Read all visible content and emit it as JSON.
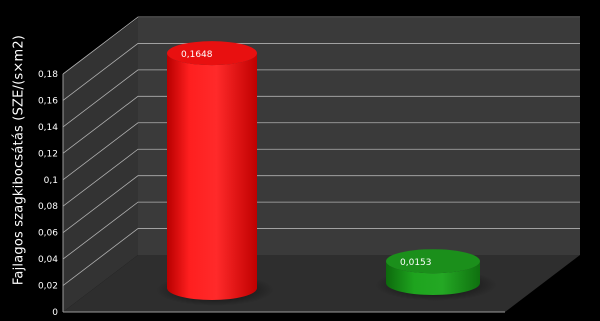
{
  "chart_data": {
    "type": "bar",
    "title": "",
    "xlabel": "",
    "ylabel": "Fajlagos szagkibocsátás (SZE/(s×m2)",
    "ylim": [
      0,
      0.18
    ],
    "yticks": [
      "0",
      "0,02",
      "0,04",
      "0,06",
      "0,08",
      "0,1",
      "0,12",
      "0,14",
      "0,16",
      "0,18"
    ],
    "categories": [
      "",
      ""
    ],
    "values": [
      0.1648,
      0.0153
    ],
    "data_labels": [
      "0,1648",
      "0,0153"
    ],
    "bar_shape": "3d-cylinder",
    "bar_colors": [
      "#ff1a1a",
      "#1f9a1f"
    ],
    "grid": true,
    "legend": "none",
    "colors": {
      "background": "#000000",
      "wall": "#3a3a3a",
      "floor": "#2e2e2e",
      "grid": "#b0b0b0",
      "text": "#ffffff"
    }
  }
}
